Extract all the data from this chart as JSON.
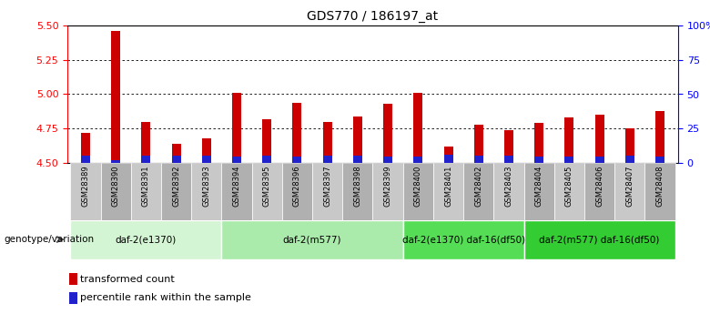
{
  "title": "GDS770 / 186197_at",
  "samples": [
    "GSM28389",
    "GSM28390",
    "GSM28391",
    "GSM28392",
    "GSM28393",
    "GSM28394",
    "GSM28395",
    "GSM28396",
    "GSM28397",
    "GSM28398",
    "GSM28399",
    "GSM28400",
    "GSM28401",
    "GSM28402",
    "GSM28403",
    "GSM28404",
    "GSM28405",
    "GSM28406",
    "GSM28407",
    "GSM28408"
  ],
  "transformed_count": [
    4.72,
    5.46,
    4.8,
    4.64,
    4.68,
    5.01,
    4.82,
    4.94,
    4.8,
    4.84,
    4.93,
    5.01,
    4.62,
    4.78,
    4.74,
    4.79,
    4.83,
    4.85,
    4.75,
    4.88
  ],
  "blue_abs": [
    0.057,
    0.022,
    0.057,
    0.057,
    0.057,
    0.05,
    0.057,
    0.05,
    0.057,
    0.057,
    0.05,
    0.05,
    0.065,
    0.057,
    0.057,
    0.05,
    0.05,
    0.05,
    0.057,
    0.05
  ],
  "y_min": 4.5,
  "y_max": 5.5,
  "y_ticks": [
    4.5,
    4.75,
    5.0,
    5.25,
    5.5
  ],
  "y2_ticks": [
    0,
    25,
    50,
    75,
    100
  ],
  "y2_labels": [
    "0",
    "25",
    "50",
    "75",
    "100%"
  ],
  "bar_color": "#cc0000",
  "blue_color": "#2222cc",
  "groups": [
    {
      "label": "daf-2(e1370)",
      "start": 0,
      "end": 5,
      "color": "#d4f5d4"
    },
    {
      "label": "daf-2(m577)",
      "start": 5,
      "end": 11,
      "color": "#aaeaaa"
    },
    {
      "label": "daf-2(e1370) daf-16(df50)",
      "start": 11,
      "end": 15,
      "color": "#55dd55"
    },
    {
      "label": "daf-2(m577) daf-16(df50)",
      "start": 15,
      "end": 20,
      "color": "#33cc33"
    }
  ],
  "genotype_label": "genotype/variation",
  "legend_items": [
    {
      "label": "transformed count",
      "color": "#cc0000"
    },
    {
      "label": "percentile rank within the sample",
      "color": "#2222cc"
    }
  ],
  "gray_even": "#c8c8c8",
  "gray_odd": "#b0b0b0"
}
